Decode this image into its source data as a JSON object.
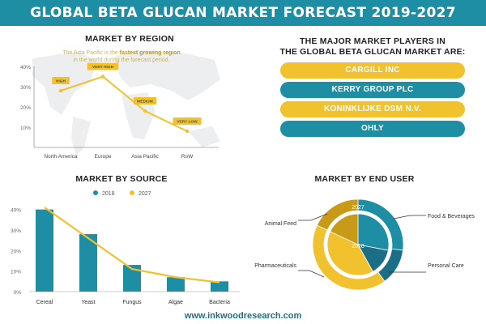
{
  "header": {
    "title": "GLOBAL BETA GLUCAN MARKET FORECAST 2019-2027"
  },
  "region": {
    "title": "MARKET BY REGION",
    "note_pre": "The Asia Pacific is the ",
    "note_bold": "fastest growing region",
    "note_post": "in the world during the forecast period."
  },
  "players": {
    "title_line1": "THE MAJOR MARKET PLAYERS IN",
    "title_line2": "THE GLOBAL BETA GLUCAN MARKET ARE:",
    "items": [
      "CARGILL INC",
      "KERRY GROUP PLC",
      "KONINKLIJKE DSM N.V.",
      "OHLY"
    ]
  },
  "source": {
    "title": "MARKET BY SOURCE"
  },
  "end_user": {
    "title": "MARKET BY END USER"
  },
  "footer": {
    "url": "www.inkwoodresearch.com"
  },
  "colors": {
    "teal": "#1d8ea3",
    "yellow": "#f2c12e",
    "dark_teal": "#1a6f86",
    "dark_yellow": "#c99a17"
  },
  "chart_data": [
    {
      "type": "line",
      "title": "MARKET BY REGION",
      "categories": [
        "North America",
        "Europe",
        "Asia Pacific",
        "RoW"
      ],
      "values": [
        28,
        35,
        18,
        8
      ],
      "labels": [
        "HIGH",
        "VERY HIGH",
        "MEDIUM",
        "VERY LOW"
      ],
      "yticks": [
        "40%",
        "30%",
        "20%",
        "10%"
      ],
      "ylim": [
        0,
        40
      ],
      "grid": false
    },
    {
      "type": "bar",
      "title": "MARKET BY SOURCE",
      "categories": [
        "Cereal",
        "Yeast",
        "Fungus",
        "Algae",
        "Bacteria"
      ],
      "series": [
        {
          "name": "2018",
          "values": [
            40,
            28,
            13,
            7,
            5
          ]
        },
        {
          "name": "2027",
          "values": [
            41,
            26,
            11,
            7,
            4.5
          ]
        }
      ],
      "series_types": [
        "bar",
        "line"
      ],
      "yticks": [
        "40%",
        "30%",
        "20%",
        "10%",
        "0%"
      ],
      "ylim": [
        0,
        45
      ],
      "legend": "top",
      "grid": false
    },
    {
      "type": "pie",
      "title": "MARKET BY END USER",
      "categories": [
        "Food & Beverages",
        "Personal Care",
        "Pharmaceuticals",
        "Animal Feed"
      ],
      "series": [
        {
          "name": "2027",
          "values": [
            27,
            13,
            42,
            18
          ]
        },
        {
          "name": "2018",
          "values": [
            28,
            14,
            40,
            18
          ]
        }
      ],
      "segment_colors": [
        "#1d8ea3",
        "#1a6f86",
        "#f2c12e",
        "#c99a17"
      ]
    }
  ]
}
